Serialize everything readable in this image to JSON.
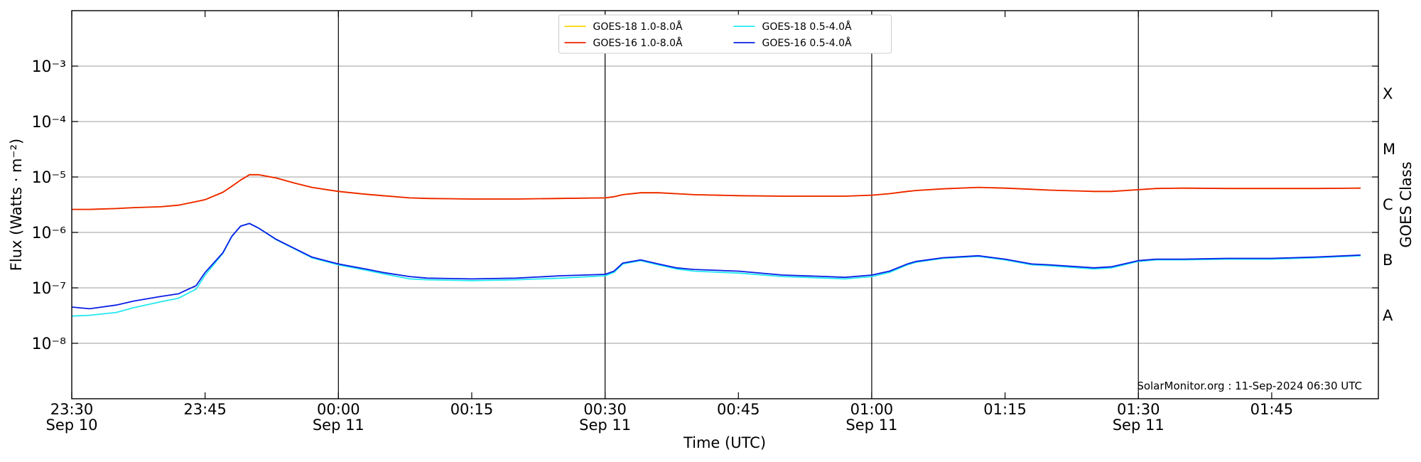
{
  "chart_data": {
    "type": "line",
    "xlabel": "Time (UTC)",
    "ylabel": "Flux (Watts · m⁻²)",
    "y2label": "GOES Class",
    "annotation": "SolarMonitor.org : 11-Sep-2024 06:30 UTC",
    "log_y": true,
    "grid": true,
    "legend": "upper center",
    "legend_columns": 2,
    "xlim": [
      "Sep 10 23:30",
      "Sep 11 01:57"
    ],
    "xticks": [
      {
        "value": "Sep 10 23:30",
        "label": "23:30\nSep 10"
      },
      {
        "value": "Sep 10 23:45",
        "label": "23:45"
      },
      {
        "value": "Sep 11 00:00",
        "label": "00:00\nSep 11"
      },
      {
        "value": "Sep 11 00:15",
        "label": "00:15"
      },
      {
        "value": "Sep 11 00:30",
        "label": "00:30\nSep 11"
      },
      {
        "value": "Sep 11 00:45",
        "label": "00:45"
      },
      {
        "value": "Sep 11 01:00",
        "label": "01:00\nSep 11"
      },
      {
        "value": "Sep 11 01:15",
        "label": "01:15"
      },
      {
        "value": "Sep 11 01:30",
        "label": "01:30\nSep 11"
      },
      {
        "value": "Sep 11 01:45",
        "label": "01:45"
      }
    ],
    "vlines": [
      "Sep 11 00:00",
      "Sep 11 00:30",
      "Sep 11 01:00",
      "Sep 11 01:30"
    ],
    "ylim": [
      1e-09,
      0.01
    ],
    "yticks": [
      {
        "value": 1e-08,
        "label": "10⁻⁸"
      },
      {
        "value": 1e-07,
        "label": "10⁻⁷"
      },
      {
        "value": 1e-06,
        "label": "10⁻⁶"
      },
      {
        "value": 1e-05,
        "label": "10⁻⁵"
      },
      {
        "value": 0.0001,
        "label": "10⁻⁴"
      },
      {
        "value": 0.001,
        "label": "10⁻³"
      }
    ],
    "y2lim": [
      1e-09,
      0.01
    ],
    "y2ticks": [
      {
        "value": 3.16e-08,
        "label": "A"
      },
      {
        "value": 3.16e-07,
        "label": "B"
      },
      {
        "value": 3.16e-06,
        "label": "C"
      },
      {
        "value": 3.16e-05,
        "label": "M"
      },
      {
        "value": 0.000316,
        "label": "X"
      }
    ],
    "x": [
      "Sep 10 23:30",
      "Sep 10 23:32",
      "Sep 10 23:35",
      "Sep 10 23:37",
      "Sep 10 23:40",
      "Sep 10 23:42",
      "Sep 10 23:44",
      "Sep 10 23:45",
      "Sep 10 23:47",
      "Sep 10 23:48",
      "Sep 10 23:49",
      "Sep 10 23:50",
      "Sep 10 23:51",
      "Sep 10 23:53",
      "Sep 10 23:55",
      "Sep 10 23:57",
      "Sep 11 00:00",
      "Sep 11 00:03",
      "Sep 11 00:05",
      "Sep 11 00:08",
      "Sep 11 00:10",
      "Sep 11 00:15",
      "Sep 11 00:20",
      "Sep 11 00:25",
      "Sep 11 00:30",
      "Sep 11 00:31",
      "Sep 11 00:32",
      "Sep 11 00:34",
      "Sep 11 00:36",
      "Sep 11 00:38",
      "Sep 11 00:40",
      "Sep 11 00:45",
      "Sep 11 00:50",
      "Sep 11 00:55",
      "Sep 11 00:57",
      "Sep 11 01:00",
      "Sep 11 01:02",
      "Sep 11 01:04",
      "Sep 11 01:05",
      "Sep 11 01:08",
      "Sep 11 01:12",
      "Sep 11 01:15",
      "Sep 11 01:18",
      "Sep 11 01:20",
      "Sep 11 01:25",
      "Sep 11 01:27",
      "Sep 11 01:30",
      "Sep 11 01:32",
      "Sep 11 01:35",
      "Sep 11 01:40",
      "Sep 11 01:45",
      "Sep 11 01:50",
      "Sep 11 01:55"
    ],
    "series": [
      {
        "name": "GOES-18 1.0-8.0Å",
        "color": "#ffd700",
        "values": [
          2.6e-06,
          2.6e-06,
          2.7e-06,
          2.8e-06,
          2.9e-06,
          3.1e-06,
          3.6e-06,
          3.9e-06,
          5.3e-06,
          6.8e-06,
          8.8e-06,
          1.1e-05,
          1.1e-05,
          9.6e-06,
          7.8e-06,
          6.5e-06,
          5.5e-06,
          4.9e-06,
          4.6e-06,
          4.2e-06,
          4.1e-06,
          4e-06,
          4e-06,
          4.1e-06,
          4.2e-06,
          4.4e-06,
          4.8e-06,
          5.2e-06,
          5.2e-06,
          5e-06,
          4.8e-06,
          4.6e-06,
          4.5e-06,
          4.5e-06,
          4.5e-06,
          4.7e-06,
          5e-06,
          5.5e-06,
          5.7e-06,
          6.1e-06,
          6.5e-06,
          6.3e-06,
          6e-06,
          5.8e-06,
          5.5e-06,
          5.5e-06,
          5.9e-06,
          6.2e-06,
          6.3e-06,
          6.2e-06,
          6.2e-06,
          6.2e-06,
          6.3e-06
        ]
      },
      {
        "name": "GOES-16 1.0-8.0Å",
        "color": "#ee2200",
        "values": [
          2.6e-06,
          2.6e-06,
          2.7e-06,
          2.8e-06,
          2.9e-06,
          3.1e-06,
          3.6e-06,
          3.9e-06,
          5.3e-06,
          6.8e-06,
          8.8e-06,
          1.1e-05,
          1.1e-05,
          9.6e-06,
          7.8e-06,
          6.5e-06,
          5.5e-06,
          4.9e-06,
          4.6e-06,
          4.2e-06,
          4.1e-06,
          4e-06,
          4e-06,
          4.1e-06,
          4.2e-06,
          4.4e-06,
          4.8e-06,
          5.2e-06,
          5.2e-06,
          5e-06,
          4.8e-06,
          4.6e-06,
          4.5e-06,
          4.5e-06,
          4.5e-06,
          4.7e-06,
          5e-06,
          5.5e-06,
          5.7e-06,
          6.1e-06,
          6.5e-06,
          6.3e-06,
          6e-06,
          5.8e-06,
          5.5e-06,
          5.5e-06,
          5.9e-06,
          6.2e-06,
          6.3e-06,
          6.2e-06,
          6.2e-06,
          6.2e-06,
          6.3e-06
        ]
      },
      {
        "name": "GOES-18 0.5-4.0Å",
        "color": "#22e8f0",
        "values": [
          3.1e-08,
          3.2e-08,
          3.6e-08,
          4.4e-08,
          5.6e-08,
          6.5e-08,
          9.5e-08,
          1.7e-07,
          4.2e-07,
          8.4e-07,
          1.3e-06,
          1.45e-06,
          1.2e-06,
          7.4e-07,
          5.1e-07,
          3.5e-07,
          2.6e-07,
          2.1e-07,
          1.8e-07,
          1.45e-07,
          1.4e-07,
          1.35e-07,
          1.4e-07,
          1.5e-07,
          1.65e-07,
          1.9e-07,
          2.7e-07,
          3.1e-07,
          2.6e-07,
          2.2e-07,
          2e-07,
          1.85e-07,
          1.6e-07,
          1.5e-07,
          1.45e-07,
          1.6e-07,
          1.9e-07,
          2.6e-07,
          2.9e-07,
          3.4e-07,
          3.7e-07,
          3.2e-07,
          2.6e-07,
          2.5e-07,
          2.2e-07,
          2.3e-07,
          3e-07,
          3.2e-07,
          3.2e-07,
          3.3e-07,
          3.3e-07,
          3.5e-07,
          3.8e-07
        ]
      },
      {
        "name": "GOES-16 0.5-4.0Å",
        "color": "#0a1ee6",
        "values": [
          4.5e-08,
          4.2e-08,
          4.9e-08,
          5.8e-08,
          7e-08,
          7.8e-08,
          1.1e-07,
          1.9e-07,
          4.3e-07,
          8.5e-07,
          1.3e-06,
          1.45e-06,
          1.2e-06,
          7.5e-07,
          5.2e-07,
          3.6e-07,
          2.7e-07,
          2.2e-07,
          1.9e-07,
          1.6e-07,
          1.5e-07,
          1.45e-07,
          1.5e-07,
          1.65e-07,
          1.75e-07,
          2e-07,
          2.8e-07,
          3.2e-07,
          2.7e-07,
          2.3e-07,
          2.15e-07,
          2e-07,
          1.7e-07,
          1.6e-07,
          1.55e-07,
          1.7e-07,
          2e-07,
          2.7e-07,
          3e-07,
          3.5e-07,
          3.8e-07,
          3.3e-07,
          2.7e-07,
          2.6e-07,
          2.3e-07,
          2.4e-07,
          3.1e-07,
          3.3e-07,
          3.3e-07,
          3.4e-07,
          3.4e-07,
          3.6e-07,
          3.9e-07
        ]
      }
    ]
  }
}
